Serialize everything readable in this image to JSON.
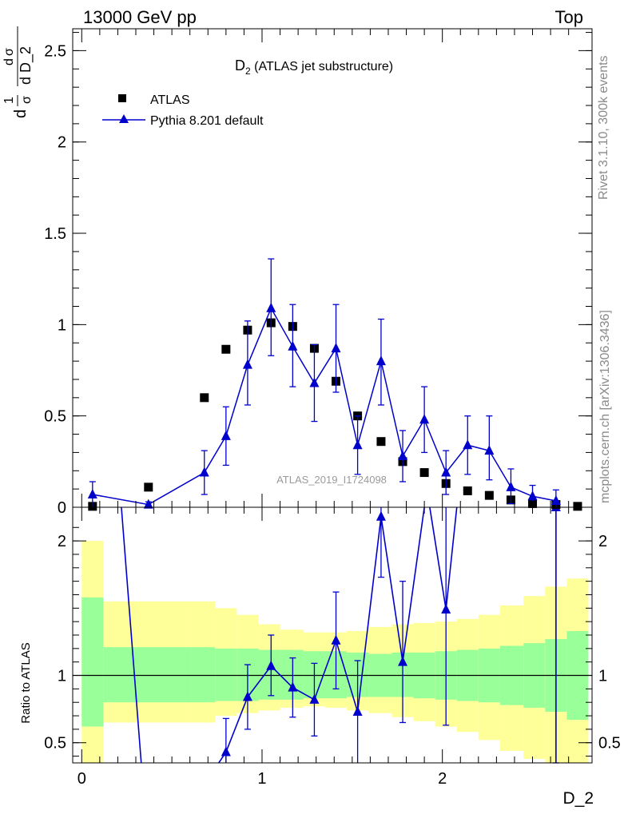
{
  "header": {
    "left": "13000 GeV pp",
    "right": "Top"
  },
  "side_labels": {
    "rivet": "Rivet 3.1.10,  300k events",
    "mcplots": "mcplots.cern.ch [arXiv:1306.3436]"
  },
  "chart_data": [
    {
      "type": "scatter",
      "title": "D_2 (ATLAS jet substructure)",
      "title_main": "D",
      "title_sub": "2",
      "title_rest": " (ATLAS jet substructure)",
      "ylabel_parts": [
        "d",
        "1",
        "σ",
        "d",
        "σ",
        "d D_2"
      ],
      "xlabel": "D_2",
      "watermark": "ATLAS_2019_I1724098",
      "xlim": [
        -0.05,
        2.83
      ],
      "ylim": [
        0,
        2.62
      ],
      "yticks": [
        0,
        0.5,
        1,
        1.5,
        2,
        2.5
      ],
      "ytick_labels": [
        "0",
        "0.5",
        "1",
        "1.5",
        "2",
        "2.5"
      ],
      "legend_position": "top-left",
      "series": [
        {
          "name": "ATLAS",
          "color": "#000000",
          "marker": "square",
          "x": [
            0.06,
            0.37,
            0.68,
            0.8,
            0.92,
            1.05,
            1.17,
            1.29,
            1.41,
            1.53,
            1.66,
            1.78,
            1.9,
            2.02,
            2.14,
            2.26,
            2.38,
            2.5,
            2.63,
            2.75
          ],
          "y": [
            0.005,
            0.11,
            0.6,
            0.865,
            0.97,
            1.01,
            0.99,
            0.87,
            0.69,
            0.5,
            0.36,
            0.25,
            0.19,
            0.13,
            0.09,
            0.065,
            0.04,
            0.02,
            0.015,
            0.005
          ]
        },
        {
          "name": "Pythia 8.201 default",
          "color": "#0000cc",
          "marker": "triangle",
          "x": [
            0.06,
            0.37,
            0.68,
            0.8,
            0.92,
            1.05,
            1.17,
            1.29,
            1.41,
            1.53,
            1.66,
            1.78,
            1.9,
            2.02,
            2.14,
            2.26,
            2.38,
            2.5,
            2.63
          ],
          "y": [
            0.07,
            0.015,
            0.19,
            0.39,
            0.78,
            1.09,
            0.88,
            0.68,
            0.87,
            0.34,
            0.8,
            0.28,
            0.48,
            0.19,
            0.34,
            0.31,
            0.11,
            0.06,
            0.035
          ],
          "err_low": [
            0.07,
            0.015,
            0.12,
            0.16,
            0.22,
            0.26,
            0.22,
            0.21,
            0.24,
            0.16,
            0.24,
            0.14,
            0.18,
            0.12,
            0.16,
            0.16,
            0.09,
            0.06,
            0.035
          ],
          "err_high": [
            0.07,
            0.015,
            0.12,
            0.16,
            0.24,
            0.27,
            0.23,
            0.21,
            0.24,
            0.16,
            0.23,
            0.14,
            0.18,
            0.12,
            0.16,
            0.19,
            0.1,
            0.06,
            0.06
          ]
        }
      ]
    },
    {
      "type": "scatter",
      "title": "",
      "ylabel": "Ratio to ATLAS",
      "xlabel": "D_2",
      "xlim": [
        -0.05,
        2.83
      ],
      "ylim": [
        0.35,
        2.25
      ],
      "xticks": [
        0,
        1,
        2
      ],
      "xtick_labels": [
        "0",
        "1",
        "2"
      ],
      "yticks": [
        0.5,
        1,
        2
      ],
      "ytick_labels": [
        "0.5",
        "1",
        "2"
      ],
      "reference_line": 1,
      "bands": {
        "edges": [
          0.0,
          0.12,
          0.61,
          0.74,
          0.86,
          0.98,
          1.1,
          1.23,
          1.35,
          1.47,
          1.59,
          1.72,
          1.84,
          1.96,
          2.08,
          2.2,
          2.32,
          2.45,
          2.57,
          2.69,
          2.81
        ],
        "green_low": [
          0.62,
          0.8,
          0.8,
          0.81,
          0.81,
          0.82,
          0.82,
          0.83,
          0.83,
          0.84,
          0.84,
          0.84,
          0.83,
          0.82,
          0.81,
          0.8,
          0.78,
          0.76,
          0.73,
          0.67
        ],
        "green_high": [
          1.58,
          1.21,
          1.21,
          1.2,
          1.2,
          1.19,
          1.19,
          1.18,
          1.18,
          1.17,
          1.16,
          1.17,
          1.17,
          1.18,
          1.19,
          1.2,
          1.22,
          1.24,
          1.27,
          1.33
        ],
        "yellow_low": [
          0.35,
          0.65,
          0.65,
          0.7,
          0.72,
          0.74,
          0.76,
          0.77,
          0.76,
          0.74,
          0.72,
          0.69,
          0.66,
          0.62,
          0.58,
          0.52,
          0.44,
          0.38,
          0.35,
          0.35
        ],
        "yellow_high": [
          2.0,
          1.55,
          1.55,
          1.5,
          1.45,
          1.38,
          1.34,
          1.32,
          1.32,
          1.33,
          1.36,
          1.38,
          1.39,
          1.4,
          1.42,
          1.45,
          1.52,
          1.59,
          1.66,
          1.72
        ]
      },
      "series": [
        {
          "name": "Pythia 8.201 default",
          "color": "#0000cc",
          "marker": "triangle",
          "line_path": [
            [
              0.22,
              2.25
            ],
            [
              0.33,
              0.35
            ]
          ],
          "line_path_b": [
            [
              0.76,
              0.35
            ],
            [
              0.8,
              0.43
            ],
            [
              0.92,
              0.84
            ],
            [
              1.05,
              1.07
            ],
            [
              1.17,
              0.91
            ],
            [
              1.29,
              0.82
            ],
            [
              1.41,
              1.26
            ],
            [
              1.53,
              0.73
            ],
            [
              1.66,
              2.18
            ],
            [
              1.78,
              1.1
            ],
            [
              1.9,
              2.25
            ]
          ],
          "line_path_c": [
            [
              1.93,
              2.25
            ],
            [
              2.02,
              1.49
            ],
            [
              2.08,
              2.25
            ]
          ],
          "line_path_d": [
            [
              2.63,
              2.25
            ],
            [
              2.63,
              0.35
            ]
          ],
          "x": [
            0.8,
            0.92,
            1.05,
            1.17,
            1.29,
            1.41,
            1.53,
            1.66,
            1.78,
            2.02,
            2.63
          ],
          "y": [
            0.43,
            0.84,
            1.07,
            0.91,
            0.82,
            1.26,
            0.73,
            2.18,
            1.1,
            1.49,
            2.25
          ],
          "err_low": [
            0.15,
            0.24,
            0.22,
            0.22,
            0.27,
            0.36,
            0.38,
            0.45,
            0.45,
            0.86,
            1.9
          ],
          "err_high": [
            0.25,
            0.24,
            0.23,
            0.22,
            0.27,
            0.36,
            0.38,
            0.1,
            0.6,
            0.8,
            0.0
          ]
        }
      ]
    }
  ]
}
